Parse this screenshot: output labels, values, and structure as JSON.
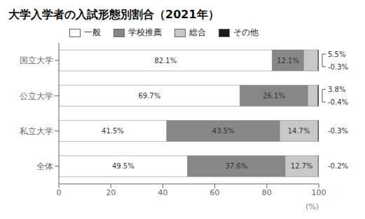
{
  "chart_data": {
    "type": "bar",
    "title": "大学入学者の入試形態別割合（2021年）",
    "orientation": "horizontal",
    "stacked": true,
    "data_labels": true,
    "grid": false,
    "legend": "top",
    "categories": [
      "国立大学",
      "公立大学",
      "私立大学",
      "全体"
    ],
    "series": [
      {
        "name": "一般",
        "color": "#ffffff",
        "values": [
          82.1,
          69.7,
          41.5,
          49.5
        ],
        "value_labels": [
          "82.1%",
          "69.7%",
          "41.5%",
          "49.5%"
        ]
      },
      {
        "name": "学校推薦",
        "color": "#878787",
        "values": [
          12.1,
          26.1,
          43.5,
          37.6
        ],
        "value_labels": [
          "12.1%",
          "26.1%",
          "43.5%",
          "37.6%"
        ]
      },
      {
        "name": "総合",
        "color": "#c8c8c8",
        "values": [
          5.5,
          3.8,
          14.7,
          12.7
        ],
        "value_labels": [
          null,
          null,
          "14.7%",
          "12.7%"
        ]
      },
      {
        "name": "その他",
        "color": "#1a1a1a",
        "values": [
          0.3,
          0.4,
          0.3,
          0.2
        ],
        "value_labels": [
          null,
          null,
          null,
          null
        ]
      }
    ],
    "xlabel": "(%)",
    "xlim": [
      0,
      100
    ],
    "xticks": [
      0,
      20,
      40,
      60,
      80,
      100
    ],
    "annotations": [
      {
        "category": "国立大学",
        "labels": [
          "5.5%",
          "-0.3%"
        ]
      },
      {
        "category": "公立大学",
        "labels": [
          "3.8%",
          "-0.4%"
        ]
      },
      {
        "category": "私立大学",
        "labels": [
          "-0.3%"
        ]
      },
      {
        "category": "全体",
        "labels": [
          "-0.2%"
        ]
      }
    ]
  }
}
